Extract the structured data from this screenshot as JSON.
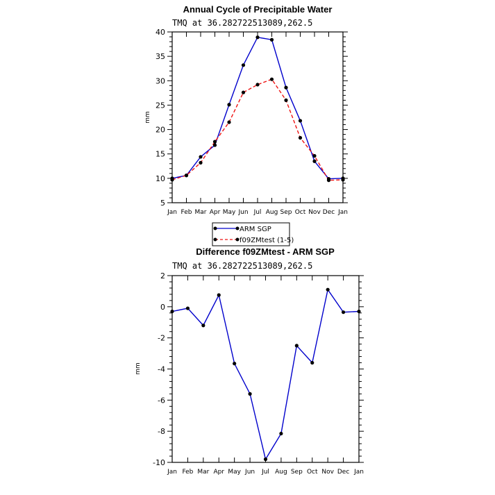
{
  "chart_data": [
    {
      "type": "line",
      "title": "Annual Cycle of Precipitable Water",
      "subtitle": "TMQ at 36.282722513089,262.5",
      "xlabel": "",
      "ylabel": "mm",
      "categories": [
        "Jan",
        "Feb",
        "Mar",
        "Apr",
        "May",
        "Jun",
        "Jul",
        "Aug",
        "Sep",
        "Oct",
        "Nov",
        "Dec",
        "Jan"
      ],
      "ylim": [
        5,
        40
      ],
      "yticks": [
        5,
        10,
        15,
        20,
        25,
        30,
        35,
        40
      ],
      "series": [
        {
          "name": "ARM  SGP",
          "color": "#0000cc",
          "dash": "solid",
          "values": [
            10.0,
            10.6,
            14.4,
            16.8,
            25.1,
            33.2,
            38.9,
            38.4,
            28.6,
            21.8,
            13.5,
            9.9,
            10.0
          ]
        },
        {
          "name": "f09ZMtest (1-5)",
          "color": "#ee1111",
          "dash": "dashed",
          "values": [
            9.7,
            10.6,
            13.2,
            17.5,
            21.5,
            27.6,
            29.2,
            30.3,
            26.0,
            18.3,
            14.6,
            9.6,
            9.7
          ]
        }
      ],
      "legend": "bottom-left"
    },
    {
      "type": "line",
      "title": "Difference f09ZMtest - ARM SGP",
      "subtitle": "TMQ at 36.282722513089,262.5",
      "xlabel": "",
      "ylabel": "mm",
      "categories": [
        "Jan",
        "Feb",
        "Mar",
        "Apr",
        "May",
        "Jun",
        "Jul",
        "Aug",
        "Sep",
        "Oct",
        "Nov",
        "Dec",
        "Jan"
      ],
      "ylim": [
        -10,
        2
      ],
      "yticks": [
        2,
        0,
        -2,
        -4,
        -6,
        -8,
        -10
      ],
      "series": [
        {
          "name": "difference",
          "color": "#0000cc",
          "dash": "solid",
          "values": [
            -0.3,
            -0.1,
            -1.2,
            0.75,
            -3.65,
            -5.6,
            -9.8,
            -8.15,
            -2.5,
            -3.6,
            1.1,
            -0.35,
            -0.3
          ]
        }
      ]
    }
  ]
}
